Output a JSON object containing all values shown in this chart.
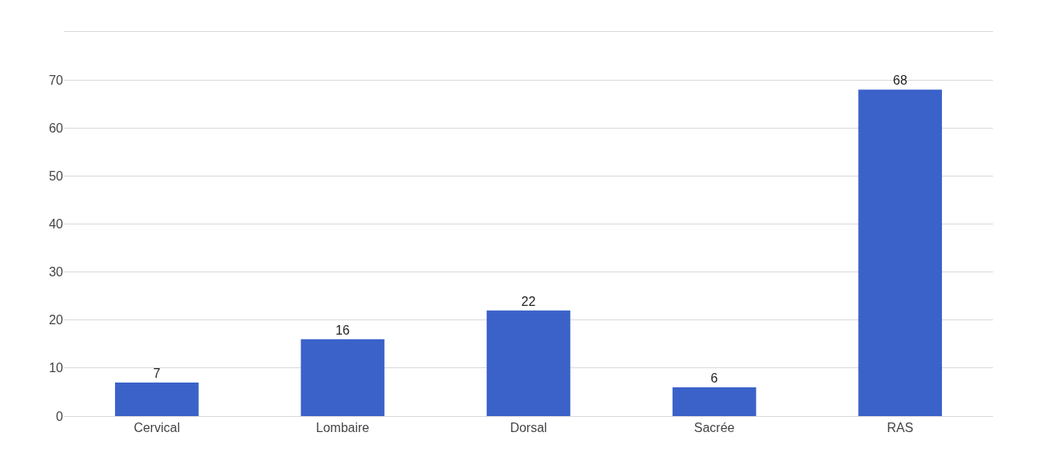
{
  "chart_data": {
    "type": "bar",
    "categories": [
      "Cervical",
      "Lombaire",
      "Dorsal",
      "Sacrée",
      "RAS"
    ],
    "values": [
      7,
      16,
      22,
      6,
      68
    ],
    "color": "#3a62c9",
    "ylim": [
      0,
      80
    ],
    "yticks": [
      0,
      10,
      20,
      30,
      40,
      50,
      60,
      70
    ],
    "grid": "y",
    "data_labels": true
  }
}
